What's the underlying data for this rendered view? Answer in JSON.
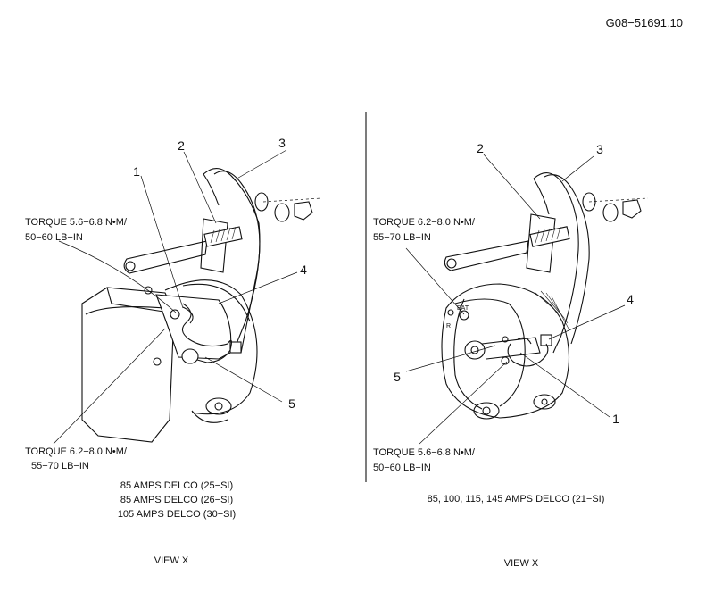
{
  "figure_code": "G08−51691.10",
  "left_view": {
    "callouts": [
      "1",
      "2",
      "3",
      "4",
      "5"
    ],
    "torque_top": [
      "TORQUE 5.6−6.8 N•M/",
      "50−60 LB−IN"
    ],
    "torque_bottom": [
      "TORQUE 6.2−8.0 N•M/",
      "55−70 LB−IN"
    ],
    "applications": [
      "85 AMPS DELCO (25−SI)",
      "85 AMPS DELCO (26−SI)",
      "105 AMPS DELCO (30−SI)"
    ],
    "view_label": "VIEW X"
  },
  "right_view": {
    "callouts": [
      "1",
      "2",
      "3",
      "4",
      "5"
    ],
    "terminal_labels": [
      "BAT",
      "R"
    ],
    "torque_top": [
      "TORQUE 6.2−8.0 N•M/",
      "55−70 LB−IN"
    ],
    "torque_bottom": [
      "TORQUE 5.6−6.8 N•M/",
      "50−60 LB−IN"
    ],
    "applications": [
      "85, 100, 115, 145 AMPS DELCO (21−SI)"
    ],
    "view_label": "VIEW X"
  }
}
